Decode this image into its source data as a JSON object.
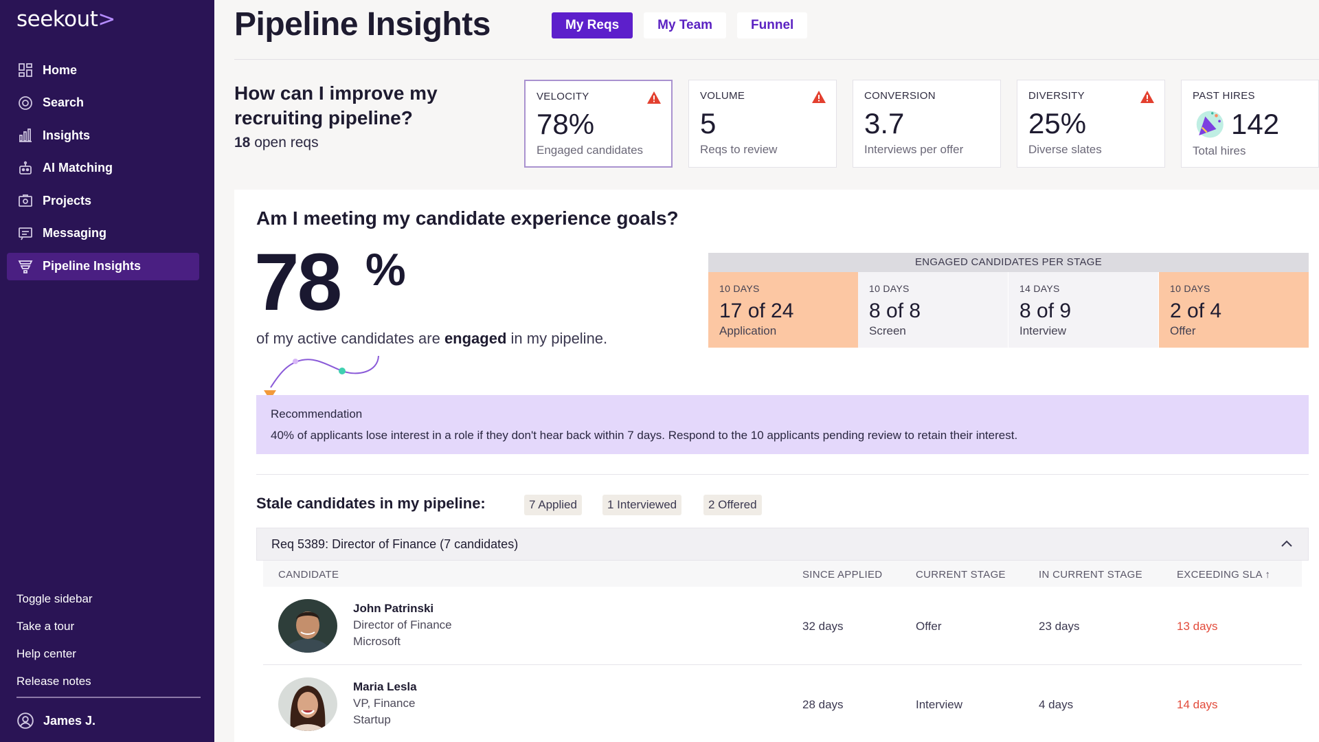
{
  "sidebar": {
    "logo": "seekout",
    "logo_mark": ">",
    "items": [
      {
        "label": "Home",
        "icon": "home-icon"
      },
      {
        "label": "Search",
        "icon": "search-icon"
      },
      {
        "label": "Insights",
        "icon": "insights-icon"
      },
      {
        "label": "AI Matching",
        "icon": "robot-icon"
      },
      {
        "label": "Projects",
        "icon": "projects-icon"
      },
      {
        "label": "Messaging",
        "icon": "messaging-icon"
      },
      {
        "label": "Pipeline Insights",
        "icon": "funnel-icon",
        "active": true
      }
    ],
    "bottom_links": [
      "Toggle sidebar",
      "Take a tour",
      "Help center",
      "Release notes"
    ],
    "user": "James J."
  },
  "header": {
    "title": "Pipeline Insights",
    "tabs": [
      "My Reqs",
      "My Team",
      "Funnel"
    ],
    "active_tab": "My Reqs"
  },
  "summary": {
    "question": "How can I improve my recruiting pipeline?",
    "open_reqs_count": "18",
    "open_reqs_label": "open reqs",
    "cards": [
      {
        "label": "VELOCITY",
        "value": "78%",
        "sub": "Engaged candidates",
        "warning": true
      },
      {
        "label": "VOLUME",
        "value": "5",
        "sub": "Reqs to review",
        "warning": true
      },
      {
        "label": "CONVERSION",
        "value": "3.7",
        "sub": "Interviews per offer",
        "warning": false
      },
      {
        "label": "DIVERSITY",
        "value": "25%",
        "sub": "Diverse slates",
        "warning": true
      },
      {
        "label": "PAST HIRES",
        "value": "142",
        "sub": "Total hires",
        "warning": false
      }
    ]
  },
  "experience": {
    "question": "Am I meeting my candidate experience goals?",
    "big_value": "78",
    "big_unit": "%",
    "text_before": "of my active candidates are",
    "text_bold": "engaged",
    "text_after": "in my pipeline.",
    "stage_header": "ENGAGED CANDIDATES PER STAGE",
    "stages": [
      {
        "days": "10 DAYS",
        "value": "17 of 24",
        "name": "Application",
        "highlight": true
      },
      {
        "days": "10 DAYS",
        "value": "8 of 8",
        "name": "Screen",
        "highlight": false
      },
      {
        "days": "14 DAYS",
        "value": "8 of 9",
        "name": "Interview",
        "highlight": false
      },
      {
        "days": "10 DAYS",
        "value": "2 of 4",
        "name": "Offer",
        "highlight": true
      }
    ],
    "recommendation_title": "Recommendation",
    "recommendation_text": "40% of applicants lose interest in a role if they don't hear back within 7 days. Respond to the 10 applicants pending review to retain their interest."
  },
  "stale": {
    "title": "Stale candidates in my pipeline:",
    "chips": [
      "7 Applied",
      "1 Interviewed",
      "2 Offered"
    ],
    "req_title": "Req 5389: Director of Finance (7 candidates)",
    "columns": [
      "CANDIDATE",
      "SINCE APPLIED",
      "CURRENT STAGE",
      "IN CURRENT STAGE",
      "EXCEEDING SLA"
    ],
    "sort_indicator": "↑",
    "rows": [
      {
        "name": "John Patrinski",
        "title": "Director of Finance",
        "company": "Microsoft",
        "since_applied": "32 days",
        "stage": "Offer",
        "in_stage": "23 days",
        "exceeding": "13 days"
      },
      {
        "name": "Maria Lesla",
        "title": "VP, Finance",
        "company": "Startup",
        "since_applied": "28 days",
        "stage": "Interview",
        "in_stage": "4 days",
        "exceeding": "14 days"
      }
    ]
  },
  "colors": {
    "sidebar_bg": "#2a1455",
    "accent": "#5d1fcb",
    "warning": "#e3402f",
    "stage_highlight": "#fcc7a3",
    "recommendation_bg": "#e4d8fb",
    "sla_red": "#e24b3b"
  }
}
